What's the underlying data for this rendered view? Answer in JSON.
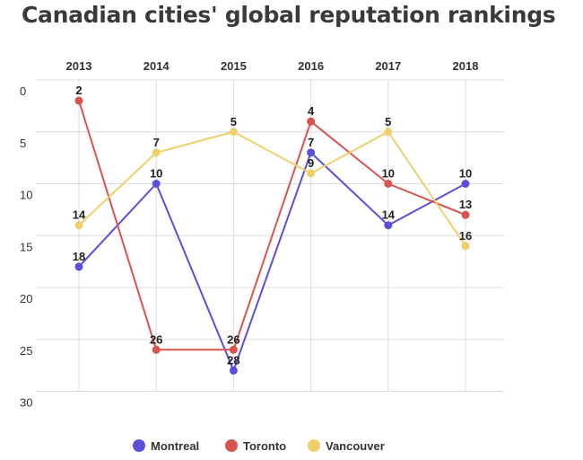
{
  "chart_data": {
    "type": "line",
    "title": "Canadian cities' global reputation rankings",
    "xlabel": "",
    "ylabel": "",
    "x": [
      "2013",
      "2014",
      "2015",
      "2016",
      "2017",
      "2018"
    ],
    "y_inverted": true,
    "ylim": [
      0,
      30
    ],
    "yticks": [
      0,
      5,
      10,
      15,
      20,
      25,
      30
    ],
    "grid": true,
    "legend_position": "bottom",
    "series": [
      {
        "name": "Montreal",
        "color": "#5b4fd9",
        "values": [
          18,
          10,
          28,
          7,
          14,
          10
        ]
      },
      {
        "name": "Toronto",
        "color": "#d9534f",
        "values": [
          2,
          26,
          26,
          4,
          10,
          13
        ]
      },
      {
        "name": "Vancouver",
        "color": "#f0cf6a",
        "values": [
          14,
          7,
          5,
          9,
          5,
          16
        ]
      }
    ]
  }
}
